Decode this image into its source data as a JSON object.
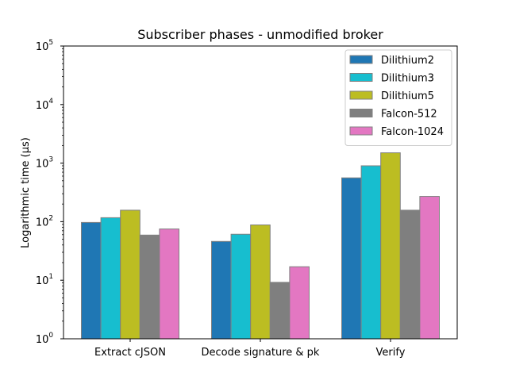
{
  "chart_data": {
    "type": "bar",
    "title": "Subscriber phases - unmodified broker",
    "xlabel": "",
    "ylabel": "Logarithmic time (µs)",
    "yscale": "log",
    "ylim": [
      1,
      100000
    ],
    "y_tick_values": [
      1,
      10,
      100,
      1000,
      10000,
      100000
    ],
    "y_tick_labels": [
      {
        "base": "10",
        "exp": "0"
      },
      {
        "base": "10",
        "exp": "1"
      },
      {
        "base": "10",
        "exp": "2"
      },
      {
        "base": "10",
        "exp": "3"
      },
      {
        "base": "10",
        "exp": "4"
      },
      {
        "base": "10",
        "exp": "5"
      }
    ],
    "categories": [
      "Extract cJSON",
      "Decode signature & pk",
      "Verify"
    ],
    "legend_position": "top-right",
    "grid": false,
    "bar_edge_color": "#808080",
    "series": [
      {
        "name": "Dilithium2",
        "color": "#1f77b4",
        "values": [
          97,
          46,
          560
        ]
      },
      {
        "name": "Dilithium3",
        "color": "#17becf",
        "values": [
          117,
          61,
          900
        ]
      },
      {
        "name": "Dilithium5",
        "color": "#bcbd22",
        "values": [
          157,
          88,
          1500
        ]
      },
      {
        "name": "Falcon-512",
        "color": "#7f7f7f",
        "values": [
          59,
          9.2,
          157
        ]
      },
      {
        "name": "Falcon-1024",
        "color": "#e377c2",
        "values": [
          75,
          17,
          270
        ]
      }
    ]
  }
}
